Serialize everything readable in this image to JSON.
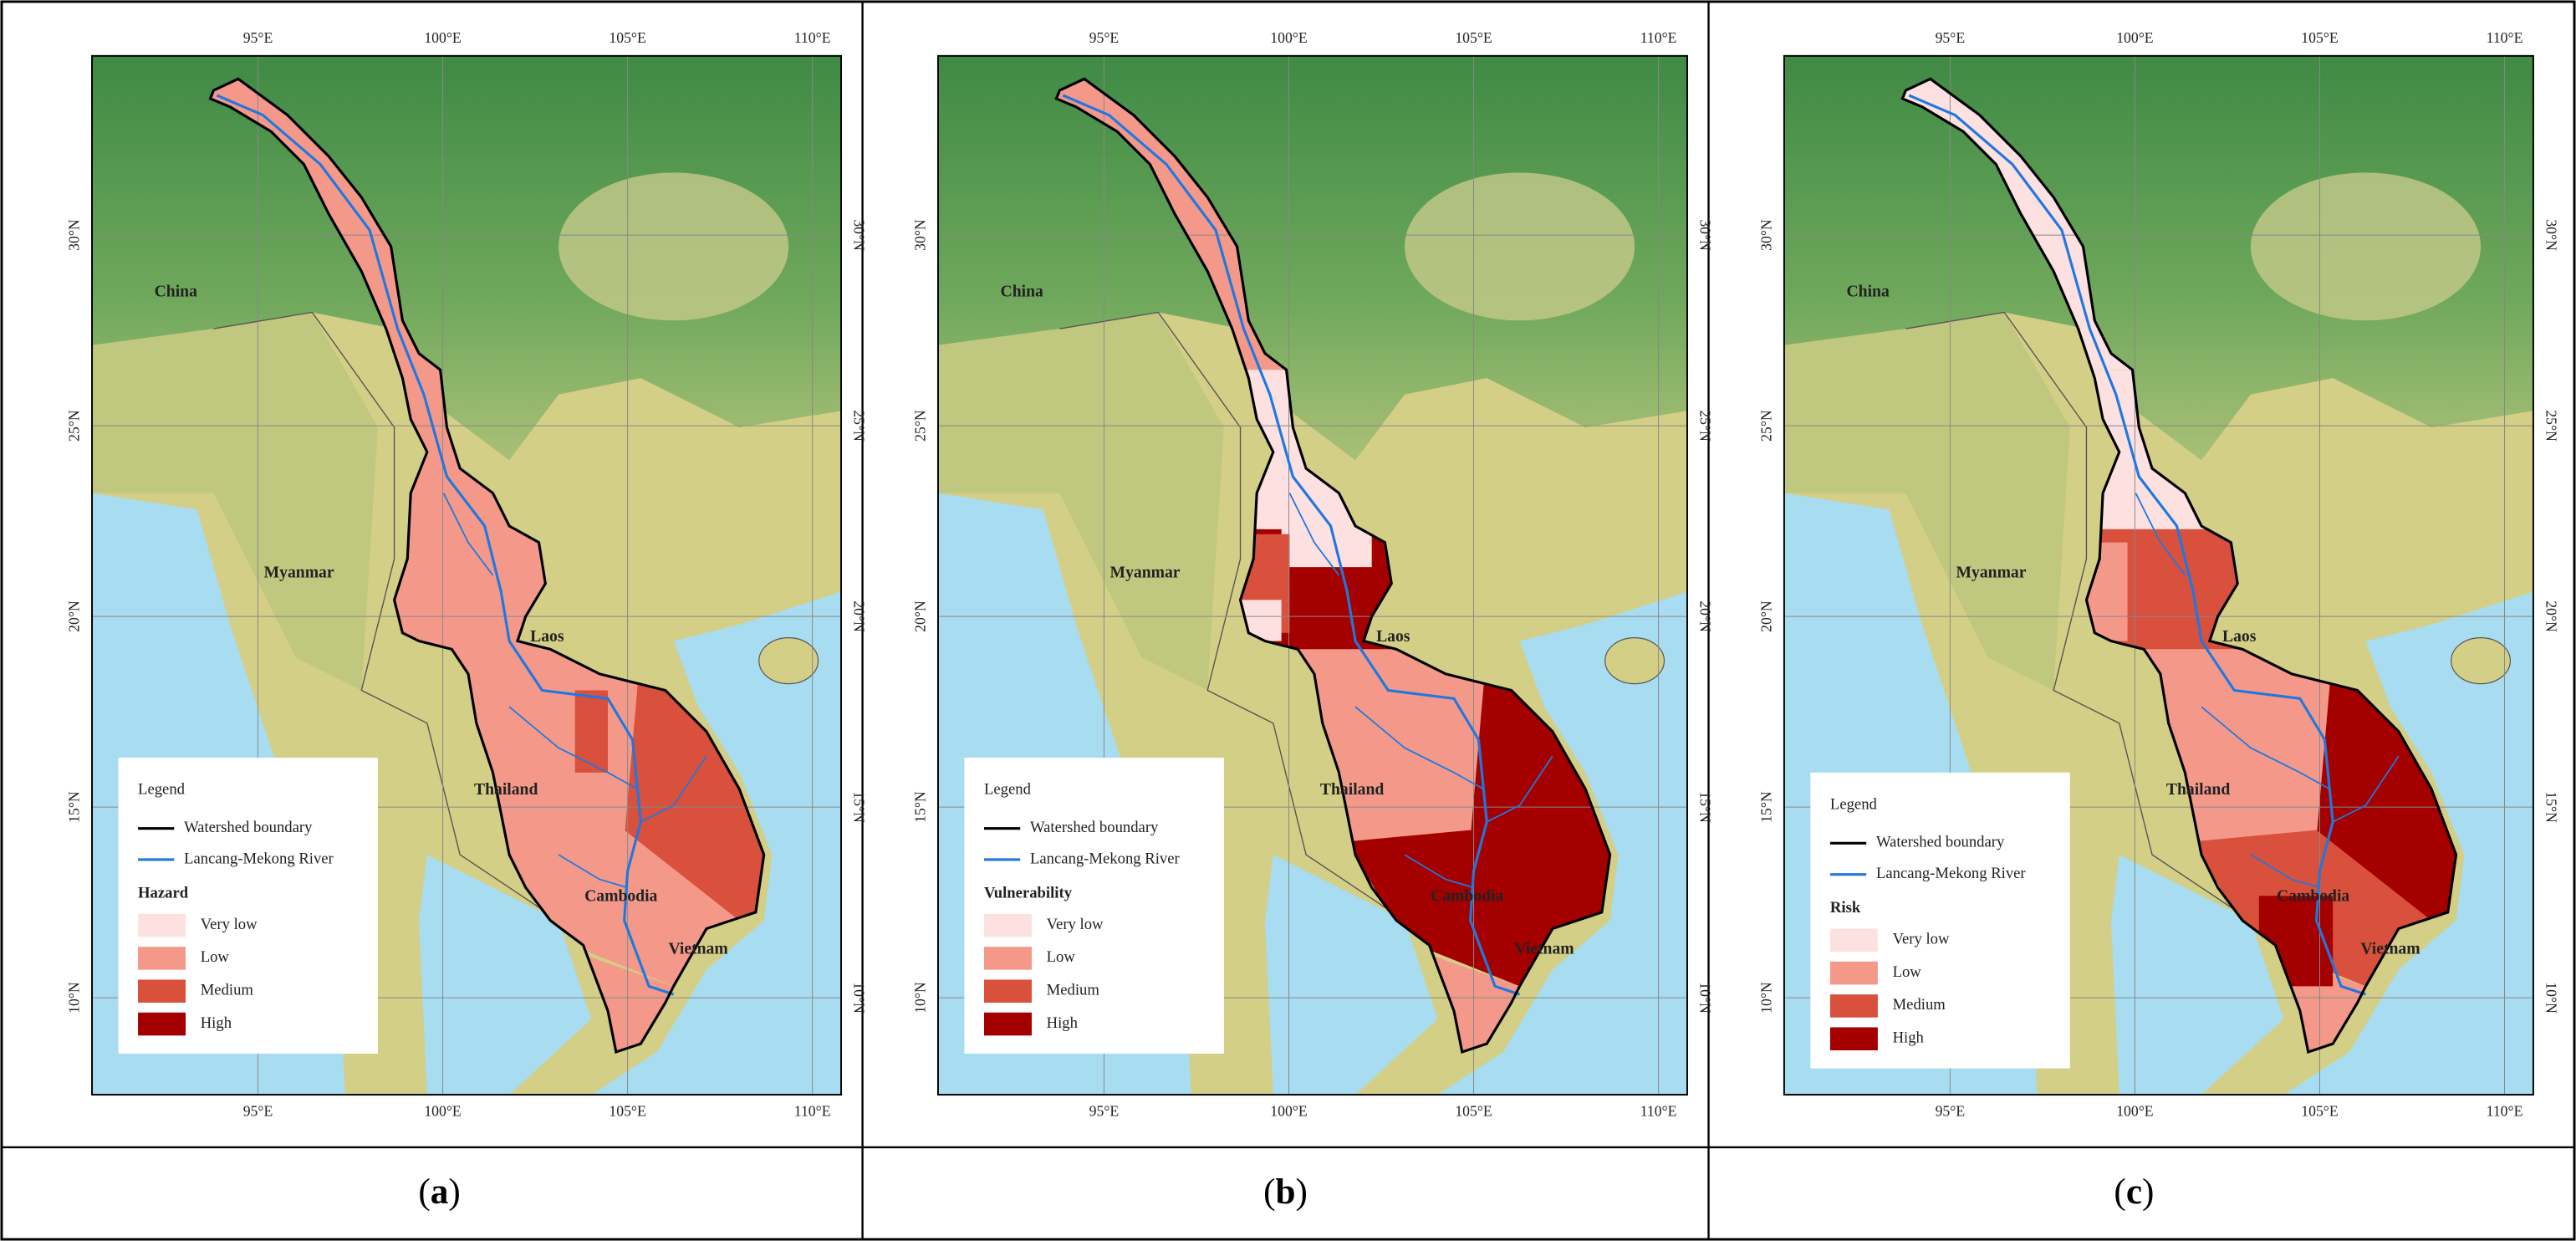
{
  "lon_ticks": [
    "95°E",
    "100°E",
    "105°E",
    "110°E"
  ],
  "lat_ticks": [
    "10°N",
    "15°N",
    "20°N",
    "25°N",
    "30°N"
  ],
  "countries": [
    "China",
    "Myanmar",
    "Laos",
    "Thailand",
    "Cambodia",
    "Vietnam"
  ],
  "legend": {
    "title": "Legend",
    "boundary": "Watershed boundary",
    "river": "Lancang-Mekong River",
    "classes": [
      {
        "name": "Very low",
        "color": "#fde0e0"
      },
      {
        "name": "Low",
        "color": "#f4998a"
      },
      {
        "name": "Medium",
        "color": "#d9503c"
      },
      {
        "name": "High",
        "color": "#a50000"
      }
    ]
  },
  "panels": [
    {
      "label_parts": [
        "(",
        "a",
        ")"
      ],
      "heading": "Hazard"
    },
    {
      "label_parts": [
        "(",
        "b",
        ")"
      ],
      "heading": "Vulnerability"
    },
    {
      "label_parts": [
        "(",
        "c",
        ")"
      ],
      "heading": "Risk"
    }
  ]
}
